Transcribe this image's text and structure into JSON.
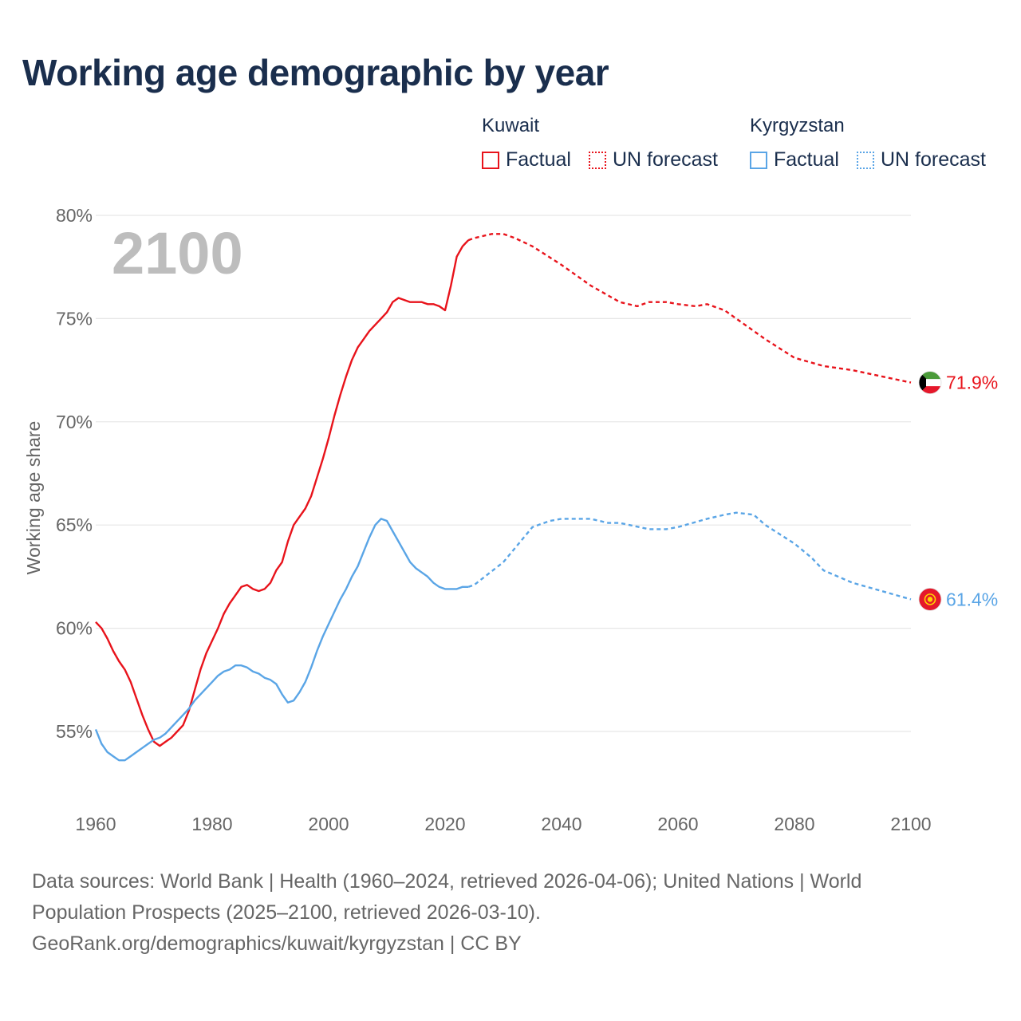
{
  "title": "Working age demographic by year",
  "legend": {
    "groups": [
      {
        "name": "Kuwait",
        "color": "#e8131b",
        "factual_label": "Factual",
        "forecast_label": "UN forecast"
      },
      {
        "name": "Kyrgyzstan",
        "color": "#5aa5e6",
        "factual_label": "Factual",
        "forecast_label": "UN forecast"
      }
    ]
  },
  "chart_data": {
    "type": "line",
    "title": "Working age demographic by year",
    "xlabel": "",
    "ylabel": "Working age share",
    "xlim": [
      1960,
      2100
    ],
    "ylim": [
      52,
      80
    ],
    "x_ticks": [
      1960,
      1980,
      2000,
      2020,
      2040,
      2060,
      2080,
      2100
    ],
    "x_tick_labels": [
      "1960",
      "1980",
      "2000",
      "2020",
      "2040",
      "2060",
      "2080",
      "2100"
    ],
    "y_ticks": [
      55,
      60,
      65,
      70,
      75,
      80
    ],
    "y_tick_labels": [
      "55%",
      "60%",
      "65%",
      "70%",
      "75%",
      "80%"
    ],
    "grid": true,
    "year_overlay": "2100",
    "series": [
      {
        "name": "Kuwait",
        "color": "#e8131b",
        "end_label": "71.9%",
        "flag_icon": "kuwait-flag-icon",
        "factual": {
          "x": [
            1960,
            1961,
            1962,
            1963,
            1964,
            1965,
            1966,
            1967,
            1968,
            1969,
            1970,
            1971,
            1972,
            1973,
            1974,
            1975,
            1976,
            1977,
            1978,
            1979,
            1980,
            1981,
            1982,
            1983,
            1984,
            1985,
            1986,
            1987,
            1988,
            1989,
            1990,
            1991,
            1992,
            1993,
            1994,
            1995,
            1996,
            1997,
            1998,
            1999,
            2000,
            2001,
            2002,
            2003,
            2004,
            2005,
            2006,
            2007,
            2008,
            2009,
            2010,
            2011,
            2012,
            2013,
            2014,
            2015,
            2016,
            2017,
            2018,
            2019,
            2020,
            2021,
            2022,
            2023,
            2024
          ],
          "y": [
            60.3,
            60.0,
            59.5,
            58.9,
            58.4,
            58.0,
            57.4,
            56.6,
            55.8,
            55.1,
            54.5,
            54.3,
            54.5,
            54.7,
            55.0,
            55.3,
            56.0,
            57.0,
            58.0,
            58.8,
            59.4,
            60.0,
            60.7,
            61.2,
            61.6,
            62.0,
            62.1,
            61.9,
            61.8,
            61.9,
            62.2,
            62.8,
            63.2,
            64.2,
            65.0,
            65.4,
            65.8,
            66.4,
            67.3,
            68.2,
            69.2,
            70.3,
            71.3,
            72.2,
            73.0,
            73.6,
            74.0,
            74.4,
            74.7,
            75.0,
            75.3,
            75.8,
            76.0,
            75.9,
            75.8,
            75.8,
            75.8,
            75.7,
            75.7,
            75.6,
            75.4,
            76.6,
            78.0,
            78.5,
            78.8
          ]
        },
        "forecast": {
          "x": [
            2024,
            2025,
            2028,
            2030,
            2032,
            2035,
            2040,
            2045,
            2050,
            2053,
            2055,
            2058,
            2060,
            2063,
            2065,
            2068,
            2070,
            2075,
            2080,
            2085,
            2090,
            2095,
            2100
          ],
          "y": [
            78.8,
            78.9,
            79.1,
            79.1,
            78.9,
            78.5,
            77.6,
            76.6,
            75.8,
            75.6,
            75.8,
            75.8,
            75.7,
            75.6,
            75.7,
            75.4,
            75.0,
            74.0,
            73.1,
            72.7,
            72.5,
            72.2,
            71.9
          ]
        }
      },
      {
        "name": "Kyrgyzstan",
        "color": "#5aa5e6",
        "end_label": "61.4%",
        "flag_icon": "kyrgyzstan-flag-icon",
        "factual": {
          "x": [
            1960,
            1961,
            1962,
            1963,
            1964,
            1965,
            1966,
            1967,
            1968,
            1969,
            1970,
            1971,
            1972,
            1973,
            1974,
            1975,
            1976,
            1977,
            1978,
            1979,
            1980,
            1981,
            1982,
            1983,
            1984,
            1985,
            1986,
            1987,
            1988,
            1989,
            1990,
            1991,
            1992,
            1993,
            1994,
            1995,
            1996,
            1997,
            1998,
            1999,
            2000,
            2001,
            2002,
            2003,
            2004,
            2005,
            2006,
            2007,
            2008,
            2009,
            2010,
            2011,
            2012,
            2013,
            2014,
            2015,
            2016,
            2017,
            2018,
            2019,
            2020,
            2021,
            2022,
            2023,
            2024
          ],
          "y": [
            55.1,
            54.4,
            54.0,
            53.8,
            53.6,
            53.6,
            53.8,
            54.0,
            54.2,
            54.4,
            54.6,
            54.7,
            54.9,
            55.2,
            55.5,
            55.8,
            56.1,
            56.5,
            56.8,
            57.1,
            57.4,
            57.7,
            57.9,
            58.0,
            58.2,
            58.2,
            58.1,
            57.9,
            57.8,
            57.6,
            57.5,
            57.3,
            56.8,
            56.4,
            56.5,
            56.9,
            57.4,
            58.1,
            58.9,
            59.6,
            60.2,
            60.8,
            61.4,
            61.9,
            62.5,
            63.0,
            63.7,
            64.4,
            65.0,
            65.3,
            65.2,
            64.7,
            64.2,
            63.7,
            63.2,
            62.9,
            62.7,
            62.5,
            62.2,
            62.0,
            61.9,
            61.9,
            61.9,
            62.0,
            62.0
          ]
        },
        "forecast": {
          "x": [
            2024,
            2025,
            2030,
            2035,
            2038,
            2040,
            2045,
            2048,
            2050,
            2055,
            2058,
            2060,
            2065,
            2068,
            2070,
            2073,
            2075,
            2080,
            2083,
            2085,
            2090,
            2095,
            2100
          ],
          "y": [
            62.0,
            62.1,
            63.2,
            64.9,
            65.2,
            65.3,
            65.3,
            65.1,
            65.1,
            64.8,
            64.8,
            64.9,
            65.3,
            65.5,
            65.6,
            65.5,
            65.0,
            64.1,
            63.4,
            62.8,
            62.2,
            61.8,
            61.4
          ]
        }
      }
    ]
  },
  "footer": {
    "line1": "Data sources: World Bank | Health (1960–2024, retrieved 2026-04-06); United Nations | World",
    "line2": "Population Prospects (2025–2100, retrieved 2026-03-10).",
    "line3": "GeoRank.org/demographics/kuwait/kyrgyzstan | CC BY"
  }
}
